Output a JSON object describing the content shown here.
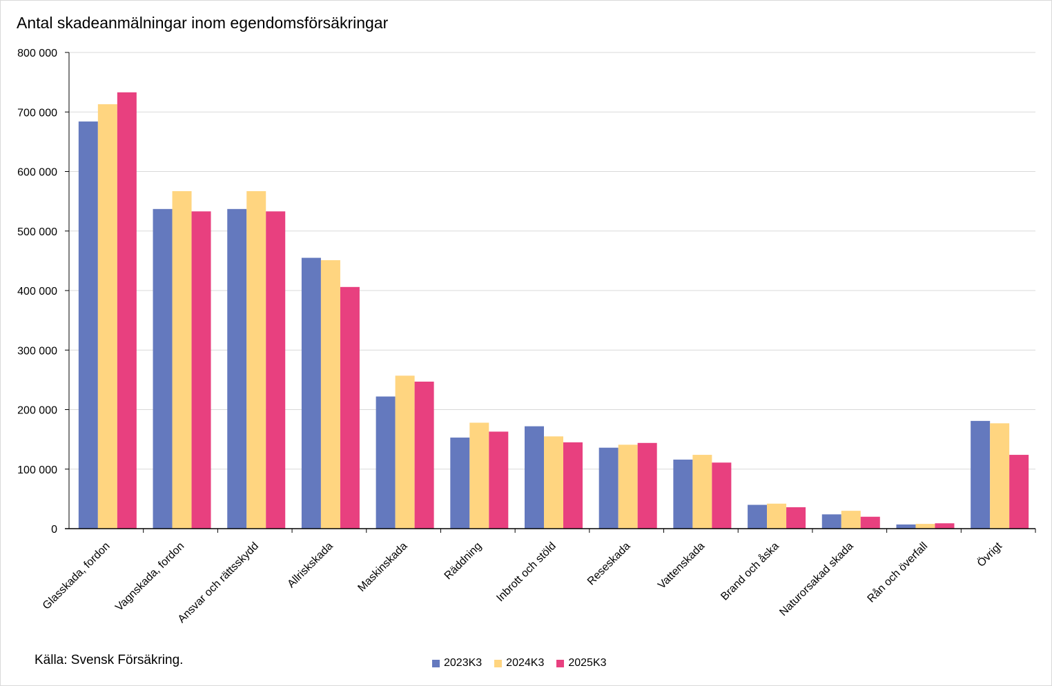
{
  "chart_data": {
    "type": "bar",
    "title": "Antal skadeanmälningar inom egendomsförsäkringar",
    "source": "Källa: Svensk Försäkring.",
    "ylim": [
      0,
      800000
    ],
    "yticks": [
      0,
      100000,
      200000,
      300000,
      400000,
      500000,
      600000,
      700000,
      800000
    ],
    "ytick_labels": [
      "0",
      "100 000",
      "200 000",
      "300 000",
      "400 000",
      "500 000",
      "600 000",
      "700 000",
      "800 000"
    ],
    "grid": true,
    "legend_position": "bottom",
    "categories": [
      "Glasskada, fordon",
      "Vagnskada, fordon",
      "Ansvar och rättsskydd",
      "Allriskskada",
      "Maskinskada",
      "Räddning",
      "Inbrott och stöld",
      "Reseskada",
      "Vattenskada",
      "Brand och åska",
      "Naturorsakad skada",
      "Rån och överfall",
      "Övrigt"
    ],
    "series": [
      {
        "name": "2023K3",
        "color": "#6479be",
        "values": [
          684000,
          537000,
          537000,
          455000,
          222000,
          153000,
          172000,
          136000,
          116000,
          40000,
          24000,
          7000,
          181000
        ]
      },
      {
        "name": "2024K3",
        "color": "#ffd580",
        "values": [
          713000,
          567000,
          567000,
          451000,
          257000,
          178000,
          155000,
          141000,
          124000,
          42000,
          30000,
          8000,
          177000
        ]
      },
      {
        "name": "2025K3",
        "color": "#e8407f",
        "values": [
          733000,
          533000,
          533000,
          406000,
          247000,
          163000,
          145000,
          144000,
          111000,
          36000,
          20000,
          9000,
          124000
        ]
      }
    ]
  }
}
